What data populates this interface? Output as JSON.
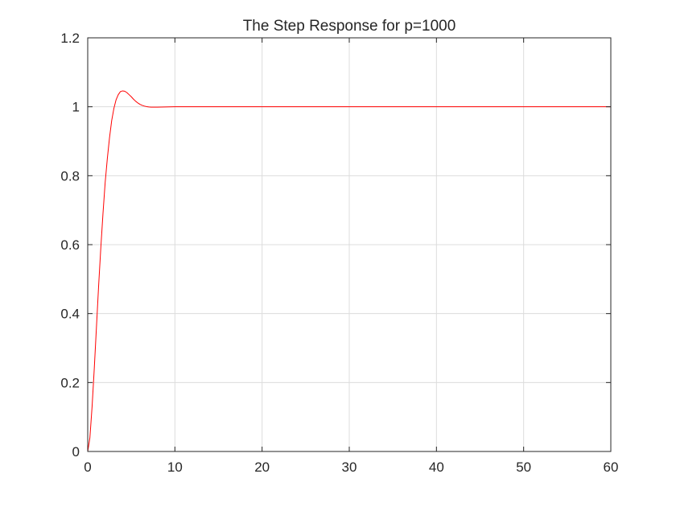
{
  "chart_data": {
    "type": "line",
    "title": "The Step Response for p=1000",
    "xlabel": "",
    "ylabel": "",
    "xlim": [
      0,
      60
    ],
    "ylim": [
      0,
      1.2
    ],
    "xticks": [
      0,
      10,
      20,
      30,
      40,
      50,
      60
    ],
    "yticks": [
      0,
      0.2,
      0.4,
      0.6,
      0.8,
      1,
      1.2
    ],
    "xtick_labels": [
      "0",
      "10",
      "20",
      "30",
      "40",
      "50",
      "60"
    ],
    "ytick_labels": [
      "0",
      "0.2",
      "0.4",
      "0.6",
      "0.8",
      "1",
      "1.2"
    ],
    "grid": true,
    "series": [
      {
        "color": "#ff0000",
        "x": [
          0,
          0.25,
          0.5,
          0.75,
          1,
          1.25,
          1.5,
          1.75,
          2,
          2.25,
          2.5,
          2.75,
          3,
          3.25,
          3.5,
          3.75,
          4,
          4.25,
          4.5,
          4.75,
          5,
          5.25,
          5.5,
          5.75,
          6,
          6.25,
          6.5,
          6.75,
          7,
          7.25,
          7.5,
          8,
          8.5,
          9,
          9.5,
          10,
          11,
          12,
          14,
          16,
          20,
          30,
          40,
          50,
          60
        ],
        "y": [
          0,
          0.04,
          0.13,
          0.24,
          0.36,
          0.48,
          0.59,
          0.69,
          0.78,
          0.85,
          0.91,
          0.96,
          0.995,
          1.02,
          1.035,
          1.044,
          1.046,
          1.045,
          1.041,
          1.035,
          1.029,
          1.022,
          1.016,
          1.011,
          1.007,
          1.004,
          1.002,
          1.0005,
          0.9995,
          0.999,
          0.9988,
          0.9988,
          0.9991,
          0.9995,
          0.9998,
          1,
          1,
          1,
          1,
          1,
          1,
          1,
          1,
          1,
          1
        ]
      }
    ]
  }
}
